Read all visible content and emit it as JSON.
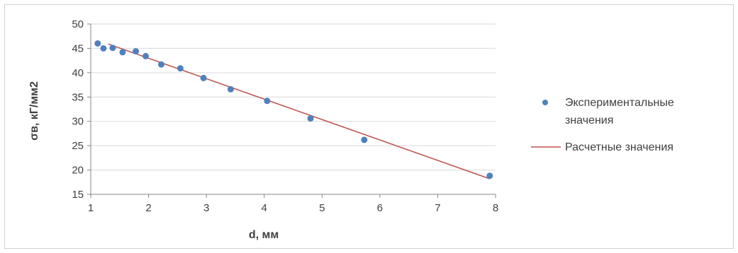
{
  "chart_data": {
    "type": "scatter",
    "title": "",
    "xlabel": "d, мм",
    "ylabel": "σв, кГ/мм2",
    "xlim": [
      1,
      8
    ],
    "ylim": [
      15,
      50
    ],
    "x_ticks": [
      1,
      2,
      3,
      4,
      5,
      6,
      7,
      8
    ],
    "y_ticks": [
      15,
      20,
      25,
      30,
      35,
      40,
      45,
      50
    ],
    "grid": "horizontal",
    "legend_position": "right",
    "series": [
      {
        "name": "Экспериментальные значения",
        "kind": "scatter",
        "color": "#4f81bd",
        "points": [
          {
            "x": 1.12,
            "y": 46.0
          },
          {
            "x": 1.22,
            "y": 45.0
          },
          {
            "x": 1.38,
            "y": 45.1
          },
          {
            "x": 1.55,
            "y": 44.2
          },
          {
            "x": 1.78,
            "y": 44.4
          },
          {
            "x": 1.95,
            "y": 43.4
          },
          {
            "x": 2.22,
            "y": 41.7
          },
          {
            "x": 2.55,
            "y": 40.9
          },
          {
            "x": 2.95,
            "y": 38.9
          },
          {
            "x": 3.42,
            "y": 36.6
          },
          {
            "x": 4.05,
            "y": 34.2
          },
          {
            "x": 4.8,
            "y": 30.6
          },
          {
            "x": 5.73,
            "y": 26.2
          },
          {
            "x": 7.9,
            "y": 18.8
          }
        ]
      },
      {
        "name": "Расчетные значения",
        "kind": "line",
        "color": "#c0504d",
        "points": [
          {
            "x": 1.3,
            "y": 45.9
          },
          {
            "x": 7.9,
            "y": 18.2
          }
        ]
      }
    ]
  },
  "legend": {
    "experimental_line1": "Экспериментальные",
    "experimental_line2": "значения",
    "calculated": "Расчетные значения"
  }
}
